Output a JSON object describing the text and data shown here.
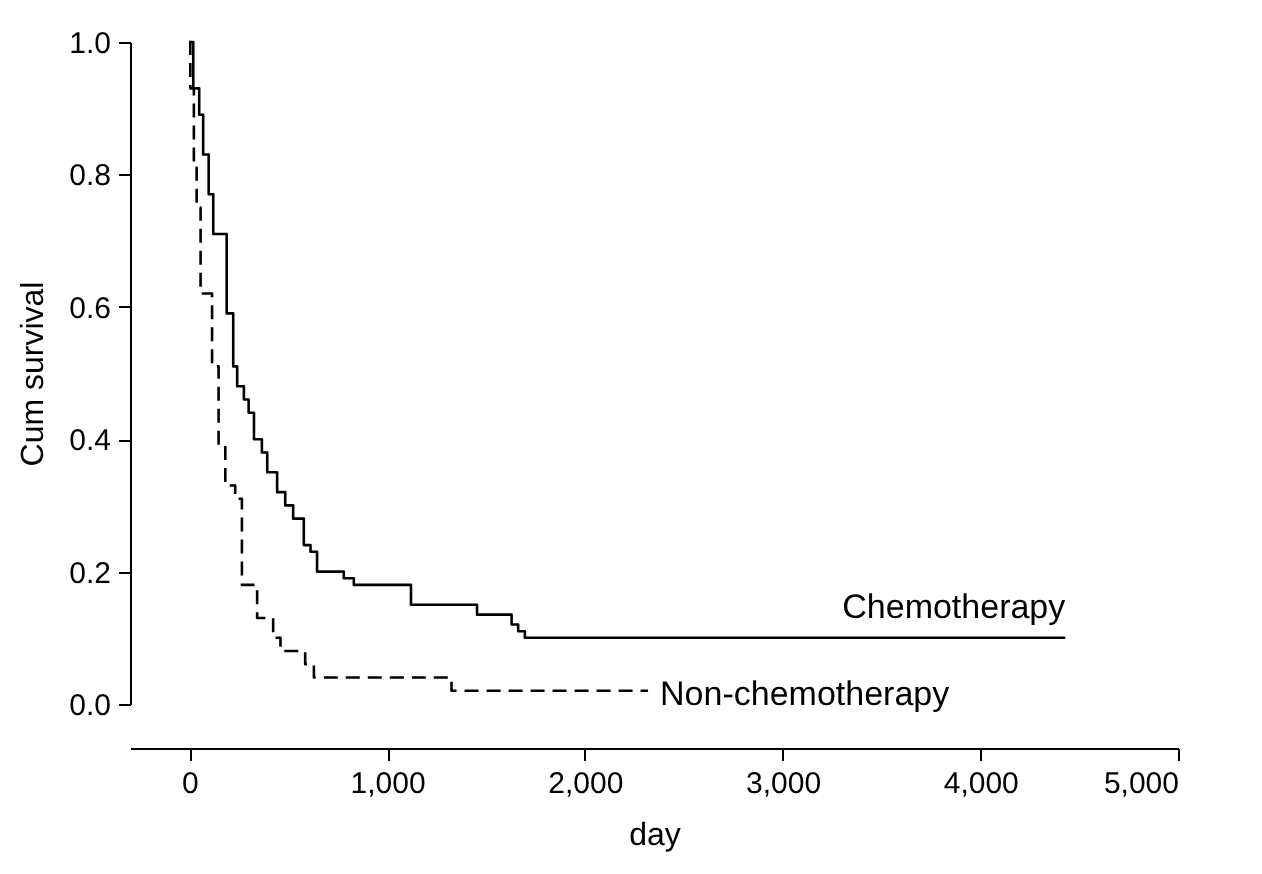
{
  "chart_data": {
    "type": "step",
    "xlabel": "day",
    "ylabel": "Cum survival",
    "xlim": [
      -300,
      5000
    ],
    "ylim": [
      0,
      1
    ],
    "xticks": [
      0,
      {
        "value": 1000,
        "label": "1,000"
      },
      {
        "value": 2000,
        "label": "2,000"
      },
      {
        "value": 3000,
        "label": "3,000"
      },
      {
        "value": 4000,
        "label": "4,000"
      },
      {
        "value": 5000,
        "label": "5,000"
      }
    ],
    "yticks": [
      {
        "value": 0,
        "label": "0.0"
      },
      {
        "value": 0.2,
        "label": "0.2"
      },
      {
        "value": 0.4,
        "label": "0.4"
      },
      {
        "value": 0.6,
        "label": "0.6"
      },
      {
        "value": 0.8,
        "label": "0.8"
      },
      {
        "value": 1,
        "label": "1.0"
      }
    ],
    "grid": false,
    "marker": "none",
    "series": [
      {
        "name": "Chemotherapy",
        "color": "#000000",
        "line_style": "solid",
        "x": [
          0,
          20,
          50,
          70,
          98,
          121,
          189,
          222,
          242,
          276,
          300,
          327,
          367,
          394,
          444,
          485,
          525,
          579,
          613,
          646,
          781,
          832,
          1121,
          1455,
          1630,
          1663,
          1697,
          4430
        ],
        "values": [
          1,
          0.93,
          0.89,
          0.83,
          0.77,
          0.71,
          0.59,
          0.51,
          0.48,
          0.46,
          0.44,
          0.4,
          0.38,
          0.35,
          0.32,
          0.3,
          0.28,
          0.24,
          0.23,
          0.2,
          0.19,
          0.18,
          0.15,
          0.135,
          0.12,
          0.11,
          0.1,
          0.1
        ]
      },
      {
        "name": "Non-chemotherapy",
        "color": "#000000",
        "line_style": "dashed",
        "x": [
          0,
          5,
          23,
          37,
          57,
          115,
          148,
          182,
          232,
          266,
          343,
          424,
          461,
          586,
          630,
          1326,
          2320
        ],
        "values": [
          1,
          0.93,
          0.81,
          0.75,
          0.62,
          0.51,
          0.39,
          0.33,
          0.31,
          0.18,
          0.13,
          0.1,
          0.08,
          0.06,
          0.04,
          0.02,
          0.02
        ]
      }
    ]
  }
}
